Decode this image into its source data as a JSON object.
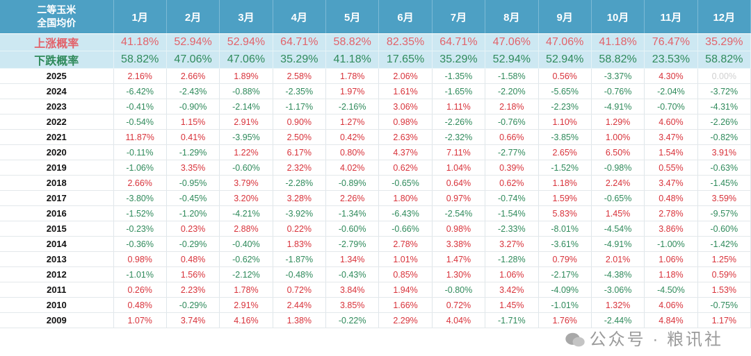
{
  "header": {
    "corner_line1": "二等玉米",
    "corner_line2": "全国均价",
    "months": [
      "1月",
      "2月",
      "3月",
      "4月",
      "5月",
      "6月",
      "7月",
      "8月",
      "9月",
      "10月",
      "11月",
      "12月"
    ]
  },
  "up_probability": {
    "label": "上涨概率",
    "values": [
      "41.18%",
      "52.94%",
      "52.94%",
      "64.71%",
      "58.82%",
      "82.35%",
      "64.71%",
      "47.06%",
      "47.06%",
      "41.18%",
      "76.47%",
      "35.29%"
    ]
  },
  "down_probability": {
    "label": "下跌概率",
    "values": [
      "58.82%",
      "47.06%",
      "47.06%",
      "35.29%",
      "41.18%",
      "17.65%",
      "35.29%",
      "52.94%",
      "52.94%",
      "58.82%",
      "23.53%",
      "58.82%"
    ]
  },
  "rows": [
    {
      "year": "2025",
      "values": [
        "2.16%",
        "2.66%",
        "1.89%",
        "2.58%",
        "1.78%",
        "2.06%",
        "-1.35%",
        "-1.58%",
        "0.56%",
        "-3.37%",
        "4.30%",
        "0.00%"
      ]
    },
    {
      "year": "2024",
      "values": [
        "-6.42%",
        "-2.43%",
        "-0.88%",
        "-2.35%",
        "1.97%",
        "1.61%",
        "-1.65%",
        "-2.20%",
        "-5.65%",
        "-0.76%",
        "-2.04%",
        "-3.72%"
      ]
    },
    {
      "year": "2023",
      "values": [
        "-0.41%",
        "-0.90%",
        "-2.14%",
        "-1.17%",
        "-2.16%",
        "3.06%",
        "1.11%",
        "2.18%",
        "-2.23%",
        "-4.91%",
        "-0.70%",
        "-4.31%"
      ]
    },
    {
      "year": "2022",
      "values": [
        "-0.54%",
        "1.15%",
        "2.91%",
        "0.90%",
        "1.27%",
        "0.98%",
        "-2.26%",
        "-0.76%",
        "1.10%",
        "1.29%",
        "4.60%",
        "-2.26%"
      ]
    },
    {
      "year": "2021",
      "values": [
        "11.87%",
        "0.41%",
        "-3.95%",
        "2.50%",
        "0.42%",
        "2.63%",
        "-2.32%",
        "0.66%",
        "-3.85%",
        "1.00%",
        "3.47%",
        "-0.82%"
      ]
    },
    {
      "year": "2020",
      "values": [
        "-0.11%",
        "-1.29%",
        "1.22%",
        "6.17%",
        "0.80%",
        "4.37%",
        "7.11%",
        "-2.77%",
        "2.65%",
        "6.50%",
        "1.54%",
        "3.91%"
      ]
    },
    {
      "year": "2019",
      "values": [
        "-1.06%",
        "3.35%",
        "-0.60%",
        "2.32%",
        "4.02%",
        "0.62%",
        "1.04%",
        "0.39%",
        "-1.52%",
        "-0.98%",
        "0.55%",
        "-0.63%"
      ]
    },
    {
      "year": "2018",
      "values": [
        "2.66%",
        "-0.95%",
        "3.79%",
        "-2.28%",
        "-0.89%",
        "-0.65%",
        "0.64%",
        "0.62%",
        "1.18%",
        "2.24%",
        "3.47%",
        "-1.45%"
      ]
    },
    {
      "year": "2017",
      "values": [
        "-3.80%",
        "-0.45%",
        "3.20%",
        "3.28%",
        "2.26%",
        "1.80%",
        "0.97%",
        "-0.74%",
        "1.59%",
        "-0.65%",
        "0.48%",
        "3.59%"
      ]
    },
    {
      "year": "2016",
      "values": [
        "-1.52%",
        "-1.20%",
        "-4.21%",
        "-3.92%",
        "-1.34%",
        "-6.43%",
        "-2.54%",
        "-1.54%",
        "5.83%",
        "1.45%",
        "2.78%",
        "-9.57%"
      ]
    },
    {
      "year": "2015",
      "values": [
        "-0.23%",
        "0.23%",
        "2.88%",
        "0.22%",
        "-0.60%",
        "-0.66%",
        "0.98%",
        "-2.33%",
        "-8.01%",
        "-4.54%",
        "3.86%",
        "-0.60%"
      ]
    },
    {
      "year": "2014",
      "values": [
        "-0.36%",
        "-0.29%",
        "-0.40%",
        "1.83%",
        "-2.79%",
        "2.78%",
        "3.38%",
        "3.27%",
        "-3.61%",
        "-4.91%",
        "-1.00%",
        "-1.42%"
      ]
    },
    {
      "year": "2013",
      "values": [
        "0.98%",
        "0.48%",
        "-0.62%",
        "-1.87%",
        "1.34%",
        "1.01%",
        "1.47%",
        "-1.28%",
        "0.79%",
        "2.01%",
        "1.06%",
        "1.25%"
      ]
    },
    {
      "year": "2012",
      "values": [
        "-1.01%",
        "1.56%",
        "-2.12%",
        "-0.48%",
        "-0.43%",
        "0.85%",
        "1.30%",
        "1.06%",
        "-2.17%",
        "-4.38%",
        "1.18%",
        "0.59%"
      ]
    },
    {
      "year": "2011",
      "values": [
        "0.26%",
        "2.23%",
        "1.78%",
        "0.72%",
        "3.84%",
        "1.94%",
        "-0.80%",
        "3.42%",
        "-4.09%",
        "-3.06%",
        "-4.50%",
        "1.53%"
      ]
    },
    {
      "year": "2010",
      "values": [
        "0.48%",
        "-0.29%",
        "2.91%",
        "2.44%",
        "3.85%",
        "1.66%",
        "0.72%",
        "1.45%",
        "-1.01%",
        "1.32%",
        "4.06%",
        "-0.75%"
      ]
    },
    {
      "year": "2009",
      "values": [
        "1.07%",
        "3.74%",
        "4.16%",
        "1.38%",
        "-0.22%",
        "2.29%",
        "4.04%",
        "-1.71%",
        "1.76%",
        "-2.44%",
        "4.84%",
        "1.17%"
      ]
    }
  ],
  "colors": {
    "header_bg": "#4da0c4",
    "prob_bg": "#cde8f2",
    "positive": "#d8323a",
    "negative": "#2f8a5b",
    "zero": "#d0d0d0"
  },
  "watermark": "公众号 · 粮讯社"
}
